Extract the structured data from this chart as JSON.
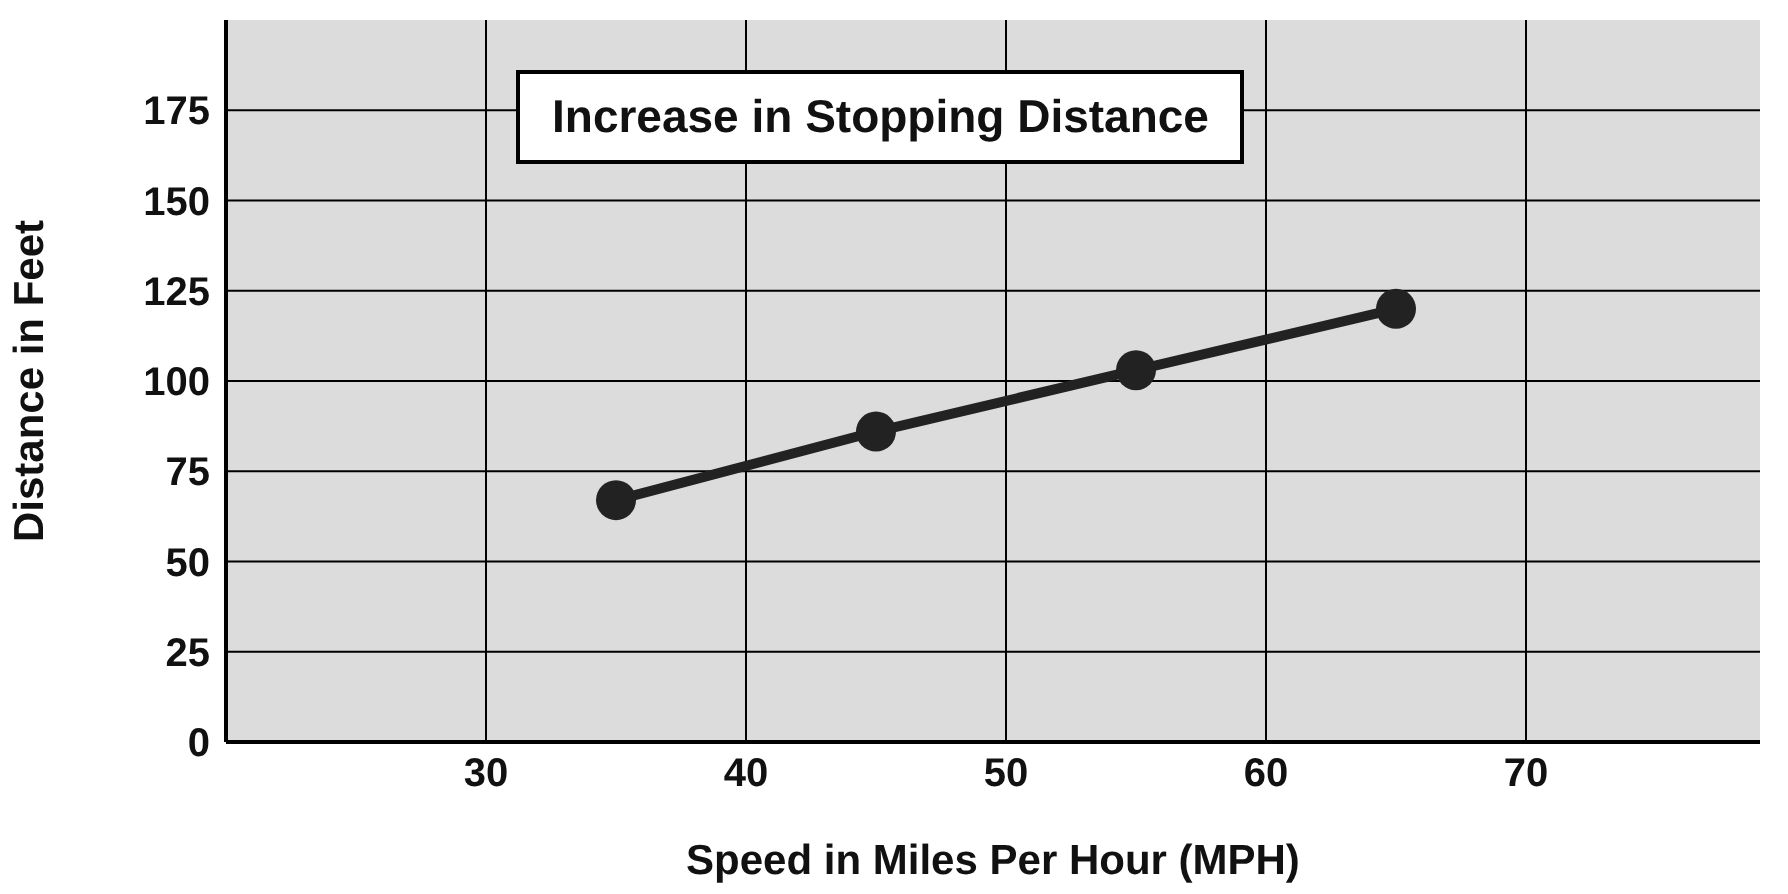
{
  "chart_data": {
    "type": "line",
    "title": "Increase in Stopping Distance",
    "xlabel": "Speed in Miles Per Hour (MPH)",
    "ylabel": "Distance in Feet",
    "x": [
      35,
      45,
      55,
      65
    ],
    "series": [
      {
        "color": "#222222",
        "values": [
          67,
          86,
          103,
          120
        ]
      }
    ],
    "xlim": [
      20,
      79
    ],
    "xticks": [
      30,
      40,
      50,
      60,
      70
    ],
    "ylim": [
      0,
      200
    ],
    "yticks": [
      0,
      25,
      50,
      75,
      100,
      125,
      150,
      175
    ],
    "grid": true,
    "marker": "circle",
    "line_style": "solid",
    "legend": false
  }
}
